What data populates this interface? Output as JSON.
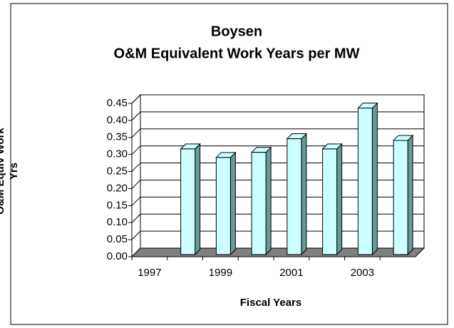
{
  "chart_data": {
    "type": "bar3d",
    "title": "Boysen",
    "subtitle": "O&M Equivalent Work Years per MW",
    "x_label": "Fiscal Years",
    "y_label": "O&M Equiv Work Yrs",
    "categories": [
      "1997",
      null,
      "1999",
      null,
      "2001",
      null,
      "2003",
      null
    ],
    "values": [
      null,
      0.31,
      0.285,
      0.3,
      0.34,
      0.31,
      0.43,
      0.335
    ],
    "color": "#ccffff",
    "side_color": "#669999",
    "floor_color": "#808080",
    "ylim": [
      0,
      0.45
    ],
    "yticks": [
      {
        "value": 0,
        "label": "0.00"
      },
      {
        "value": 0.05,
        "label": "0.05"
      },
      {
        "value": 0.1,
        "label": "0.10"
      },
      {
        "value": 0.15,
        "label": "0.15"
      },
      {
        "value": 0.2,
        "label": "0.20"
      },
      {
        "value": 0.25,
        "label": "0.25"
      },
      {
        "value": 0.3,
        "label": "0.30"
      },
      {
        "value": 0.35,
        "label": "0.35"
      },
      {
        "value": 0.4,
        "label": "0.40"
      },
      {
        "value": 0.45,
        "label": "0.45"
      }
    ],
    "grid": true
  }
}
